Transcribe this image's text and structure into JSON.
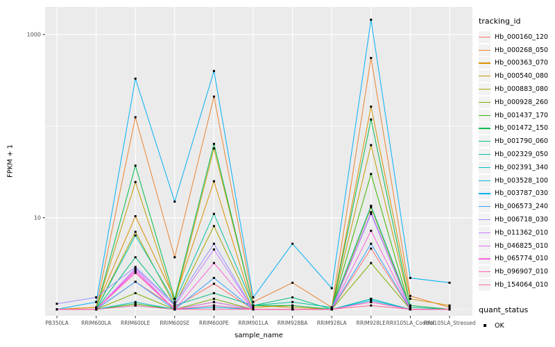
{
  "figure": {
    "y_axis": {
      "label": "FPKM + 1",
      "tick_labels": [
        "10",
        "1000"
      ]
    },
    "x_axis": {
      "label": "sample_name"
    },
    "legend_tracking": {
      "title": "tracking_id"
    },
    "legend_quant": {
      "title": "quant_status",
      "items": [
        {
          "label": "OK",
          "marker": "black-square"
        }
      ]
    }
  },
  "chart_data": {
    "type": "line",
    "title": "",
    "xlabel": "sample_name",
    "ylabel": "FPKM + 1",
    "y_scale": "log10",
    "ylim": [
      0.85,
      2000
    ],
    "y_breaks": [
      10,
      1000
    ],
    "y_minor_breaks": [
      1,
      100
    ],
    "grid": true,
    "legend_position": "right",
    "panel_background": "#EBEBEB",
    "grid_color": "#FFFFFF",
    "tick_label_color": "#4D4D4D",
    "point_marker": {
      "shape": "square",
      "color": "#000000",
      "size": 3,
      "label": "OK"
    },
    "categories": [
      "PB350LA",
      "RRIM600LA",
      "RRIM600LE",
      "RRIM600SE",
      "RRIM600PE",
      "RRIM901LA",
      "RRIM928BA",
      "RRIM928LA",
      "RRIM928LE",
      "RRII105LA_Control",
      "RRII105LA_Stressed"
    ],
    "series": [
      {
        "name": "Hb_000160_120",
        "color": "#F8766D",
        "values": [
          1.0,
          1.0,
          2.0,
          1.05,
          1.9,
          1.0,
          1.0,
          1.0,
          4.6,
          1.0,
          1.0
        ]
      },
      {
        "name": "Hb_000268_050",
        "color": "#EA8331",
        "values": [
          1.0,
          1.05,
          125,
          3.7,
          210,
          1.2,
          1.95,
          1.05,
          555,
          1.4,
          1.05
        ]
      },
      {
        "name": "Hb_000363_070",
        "color": "#D89000",
        "values": [
          1.0,
          1.05,
          10.4,
          1.3,
          25,
          1.05,
          1.1,
          1.0,
          163,
          1.3,
          1.1
        ]
      },
      {
        "name": "Hb_000540_080",
        "color": "#C09B00",
        "values": [
          1.0,
          1.0,
          24.5,
          1.2,
          57,
          1.1,
          1.05,
          1.0,
          62,
          1.1,
          1.0
        ]
      },
      {
        "name": "Hb_000883_080",
        "color": "#A3A500",
        "values": [
          1.0,
          1.0,
          7.0,
          1.1,
          8.1,
          1.0,
          1.0,
          1.0,
          13,
          1.0,
          1.0
        ]
      },
      {
        "name": "Hb_000928_260",
        "color": "#7CAE00",
        "values": [
          1.0,
          1.0,
          1.5,
          1.0,
          1.3,
          1.0,
          1.0,
          1.0,
          3.2,
          1.0,
          1.0
        ]
      },
      {
        "name": "Hb_001437_170",
        "color": "#39B600",
        "values": [
          1.0,
          1.0,
          1.15,
          1.0,
          1.2,
          1.0,
          1.0,
          1.0,
          30,
          1.0,
          1.0
        ]
      },
      {
        "name": "Hb_001472_150",
        "color": "#00BB4E",
        "values": [
          1.0,
          1.0,
          37,
          1.3,
          64,
          1.1,
          1.1,
          1.0,
          118,
          1.1,
          1.0
        ]
      },
      {
        "name": "Hb_001790_060",
        "color": "#00BF7D",
        "values": [
          1.0,
          1.0,
          3.7,
          1.1,
          1.5,
          1.1,
          1.35,
          1.0,
          1.3,
          1.0,
          1.0
        ]
      },
      {
        "name": "Hb_002329_050",
        "color": "#00C1A3",
        "values": [
          1.0,
          1.0,
          6.4,
          1.2,
          11,
          1.1,
          1.2,
          1.05,
          13.5,
          1.05,
          1.0
        ]
      },
      {
        "name": "Hb_002391_340",
        "color": "#00BFC4",
        "values": [
          1.0,
          1.0,
          1.2,
          1.0,
          1.1,
          1.0,
          1.0,
          1.0,
          1.3,
          1.0,
          1.0
        ]
      },
      {
        "name": "Hb_003528_100",
        "color": "#00BAE0",
        "values": [
          1.0,
          1.0,
          1.1,
          1.0,
          1.05,
          1.0,
          1.0,
          1.0,
          1.25,
          1.0,
          1.0
        ]
      },
      {
        "name": "Hb_003787_030",
        "color": "#00B0F6",
        "values": [
          1.0,
          1.2,
          330,
          15,
          400,
          1.35,
          5.2,
          1.7,
          1450,
          2.2,
          1.95
        ]
      },
      {
        "name": "Hb_006573_240",
        "color": "#35A2FF",
        "values": [
          1.0,
          1.0,
          2.0,
          1.0,
          2.2,
          1.0,
          1.0,
          1.0,
          5.2,
          1.0,
          1.0
        ]
      },
      {
        "name": "Hb_006718_030",
        "color": "#9590FF",
        "values": [
          1.15,
          1.35,
          2.9,
          1.15,
          5.2,
          1.0,
          1.0,
          1.0,
          11.5,
          1.0,
          1.0
        ]
      },
      {
        "name": "Hb_011362_010",
        "color": "#C77CFF",
        "values": [
          1.0,
          1.0,
          2.8,
          1.1,
          4.5,
          1.0,
          1.0,
          1.0,
          11,
          1.0,
          1.0
        ]
      },
      {
        "name": "Hb_046825_010",
        "color": "#E76BF3",
        "values": [
          1.0,
          1.0,
          2.7,
          1.0,
          1.2,
          1.0,
          1.0,
          1.0,
          1.2,
          1.0,
          1.0
        ]
      },
      {
        "name": "Hb_065774_010",
        "color": "#FA62DB",
        "values": [
          1.0,
          1.0,
          2.6,
          1.0,
          3.2,
          1.0,
          1.0,
          1.0,
          7.2,
          1.0,
          1.0
        ]
      },
      {
        "name": "Hb_096907_010",
        "color": "#FF62BC",
        "values": [
          1.0,
          1.0,
          2.5,
          1.0,
          1.1,
          1.0,
          1.0,
          1.0,
          1.2,
          1.0,
          1.0
        ]
      },
      {
        "name": "Hb_154064_010",
        "color": "#FF6A98",
        "values": [
          1.0,
          1.0,
          1.1,
          1.0,
          1.0,
          1.0,
          1.0,
          1.0,
          1.1,
          1.0,
          1.0
        ]
      }
    ]
  }
}
